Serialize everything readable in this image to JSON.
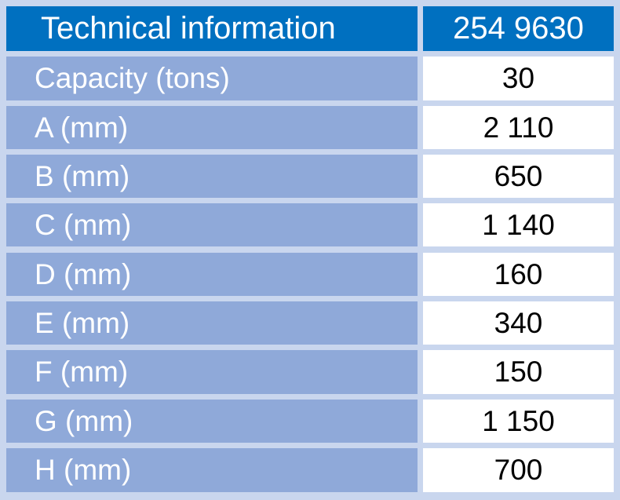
{
  "table": {
    "header": {
      "label": "Technical information",
      "value": "254 9630"
    },
    "rows": [
      {
        "label": "Capacity (tons)",
        "value": "30"
      },
      {
        "label": "A (mm)",
        "value": "2 110"
      },
      {
        "label": "B (mm)",
        "value": "650"
      },
      {
        "label": "C (mm)",
        "value": "1 140"
      },
      {
        "label": "D (mm)",
        "value": "160"
      },
      {
        "label": "E (mm)",
        "value": "340"
      },
      {
        "label": "F (mm)",
        "value": "150"
      },
      {
        "label": "G (mm)",
        "value": "1 150"
      },
      {
        "label": "H (mm)",
        "value": "700"
      }
    ]
  }
}
